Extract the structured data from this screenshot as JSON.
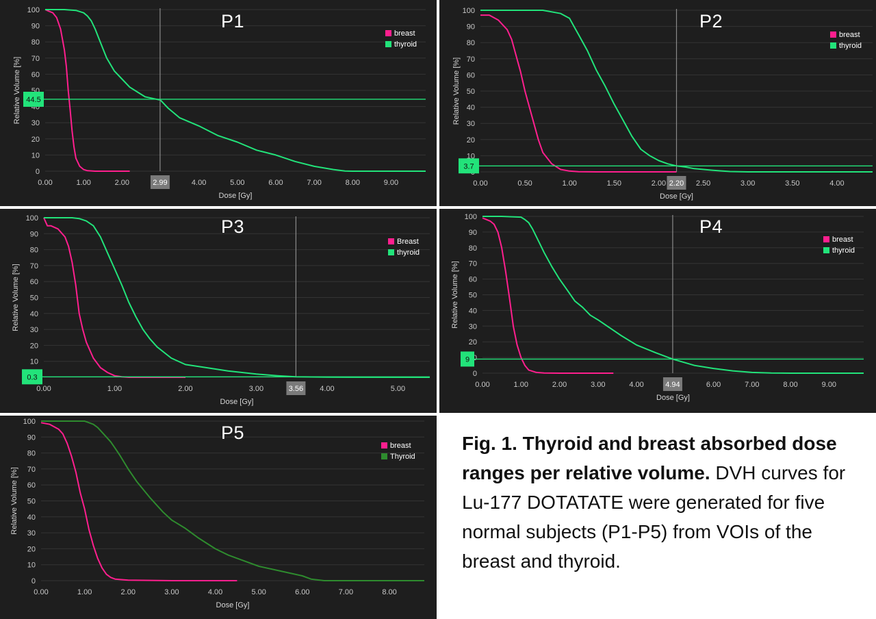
{
  "figure": {
    "caption_bold": "Fig. 1. Thyroid and breast absorbed dose ranges per relative volume.",
    "caption_rest": " DVH curves for Lu-177 DOTATATE were generated for five normal subjects (P1-P5) from VOIs of the breast and thyroid."
  },
  "colors": {
    "breast": "#ff1f8e",
    "thyroid": "#22e37a",
    "thyroid_p5": "#2e8b2e",
    "badge_green": "#22e37a",
    "badge_gray": "#7a7a7a"
  },
  "chart_data": [
    {
      "type": "line",
      "title": "P1",
      "xlabel": "Dose [Gy]",
      "ylabel": "Relative Volume [%]",
      "xlim": [
        0,
        9.9
      ],
      "ylim": [
        0,
        100
      ],
      "xticks": [
        "0.00",
        "1.00",
        "2.00",
        "3.00",
        "4.00",
        "5.00",
        "6.00",
        "7.00",
        "8.00",
        "9.00"
      ],
      "xtick_values": [
        0,
        1,
        2,
        3,
        4,
        5,
        6,
        7,
        8,
        9
      ],
      "yticks": [
        0,
        10,
        20,
        30,
        40,
        50,
        60,
        70,
        80,
        90,
        100
      ],
      "legend": "top-right",
      "cursor": {
        "x": 2.99,
        "x_label": "2.99",
        "y": 44.5,
        "y_label": "44.5"
      },
      "series": [
        {
          "name": "breast",
          "x": [
            0,
            0.1,
            0.2,
            0.3,
            0.4,
            0.5,
            0.55,
            0.6,
            0.65,
            0.7,
            0.75,
            0.8,
            0.9,
            1.0,
            1.1,
            1.3,
            1.6,
            2.2
          ],
          "y": [
            100,
            99,
            98,
            95,
            88,
            75,
            65,
            50,
            38,
            25,
            15,
            8,
            3,
            1,
            0.3,
            0,
            0,
            0
          ]
        },
        {
          "name": "thyroid",
          "x": [
            0,
            0.5,
            0.8,
            1.0,
            1.1,
            1.2,
            1.3,
            1.4,
            1.5,
            1.6,
            1.8,
            2.0,
            2.2,
            2.4,
            2.6,
            2.8,
            3.0,
            3.2,
            3.5,
            4.0,
            4.5,
            5.0,
            5.5,
            6.0,
            6.5,
            7.0,
            7.5,
            7.8,
            8.0,
            9.9
          ],
          "y": [
            100,
            100,
            99.5,
            98,
            96,
            93,
            88,
            82,
            76,
            70,
            62,
            57,
            52,
            49,
            46,
            45,
            44,
            39,
            33,
            28,
            22,
            18,
            13,
            10,
            6,
            3,
            1,
            0.1,
            0,
            0
          ]
        }
      ]
    },
    {
      "type": "line",
      "title": "P2",
      "xlabel": "Dose [Gy]",
      "ylabel": "Relative Volume [%]",
      "xlim": [
        0,
        4.4
      ],
      "ylim": [
        0,
        100
      ],
      "xticks": [
        "0.00",
        "0.50",
        "1.00",
        "1.50",
        "2.00",
        "2.50",
        "3.00",
        "3.50",
        "4.00"
      ],
      "xtick_values": [
        0,
        0.5,
        1.0,
        1.5,
        2.0,
        2.5,
        3.0,
        3.5,
        4.0
      ],
      "yticks": [
        0,
        10,
        20,
        30,
        40,
        50,
        60,
        70,
        80,
        90,
        100
      ],
      "legend": "top-right",
      "cursor": {
        "x": 2.2,
        "x_label": "2.20",
        "y": 3.7,
        "y_label": "3.7"
      },
      "series": [
        {
          "name": "breast",
          "x": [
            0,
            0.1,
            0.2,
            0.3,
            0.35,
            0.4,
            0.45,
            0.5,
            0.55,
            0.6,
            0.65,
            0.7,
            0.8,
            0.9,
            1.0,
            1.1,
            1.3,
            2.2
          ],
          "y": [
            97,
            97,
            94,
            88,
            82,
            72,
            62,
            50,
            40,
            30,
            20,
            12,
            5,
            1.5,
            0.5,
            0.1,
            0,
            0
          ]
        },
        {
          "name": "thyroid",
          "x": [
            0,
            0.5,
            0.7,
            0.9,
            1.0,
            1.05,
            1.1,
            1.2,
            1.3,
            1.4,
            1.5,
            1.6,
            1.7,
            1.8,
            1.9,
            2.0,
            2.1,
            2.2,
            2.3,
            2.4,
            2.6,
            2.8,
            3.0,
            4.4
          ],
          "y": [
            100,
            100,
            100,
            98,
            95,
            90,
            85,
            75,
            63,
            53,
            42,
            32,
            22,
            14,
            10,
            7,
            5,
            3.7,
            3,
            2,
            1,
            0.2,
            0,
            0
          ]
        }
      ]
    },
    {
      "type": "line",
      "title": "P3",
      "xlabel": "Dose [Gy]",
      "ylabel": "Relative Volume [%]",
      "xlim": [
        0,
        5.45
      ],
      "ylim": [
        0,
        100
      ],
      "xticks": [
        "0.00",
        "1.00",
        "2.00",
        "3.00",
        "4.00",
        "5.00"
      ],
      "xtick_values": [
        0,
        1,
        2,
        3,
        4,
        5
      ],
      "yticks": [
        0,
        10,
        20,
        30,
        40,
        50,
        60,
        70,
        80,
        90,
        100
      ],
      "legend": "top-right",
      "cursor": {
        "x": 3.56,
        "x_label": "3.56",
        "y": 0.3,
        "y_label": "0.3"
      },
      "series": [
        {
          "name": "Breast",
          "x": [
            0,
            0.05,
            0.1,
            0.2,
            0.3,
            0.35,
            0.4,
            0.45,
            0.5,
            0.55,
            0.6,
            0.7,
            0.8,
            0.9,
            1.0,
            1.1,
            1.2,
            2.0
          ],
          "y": [
            100,
            95,
            95,
            93,
            88,
            82,
            72,
            58,
            40,
            30,
            22,
            12,
            6,
            3,
            1,
            0.3,
            0,
            0
          ]
        },
        {
          "name": "thyroid",
          "x": [
            0,
            0.4,
            0.5,
            0.6,
            0.7,
            0.8,
            0.9,
            1.0,
            1.1,
            1.2,
            1.3,
            1.4,
            1.5,
            1.6,
            1.8,
            2.0,
            2.3,
            2.6,
            3.0,
            3.3,
            3.56,
            4.0,
            5.45
          ],
          "y": [
            100,
            100,
            99.5,
            98,
            95,
            88,
            78,
            68,
            58,
            47,
            38,
            30,
            24,
            19,
            12,
            8,
            6,
            4,
            2,
            1,
            0.3,
            0.1,
            0
          ]
        }
      ]
    },
    {
      "type": "line",
      "title": "P4",
      "xlabel": "Dose [Gy]",
      "ylabel": "Relative Volume [%]",
      "xlim": [
        0,
        9.9
      ],
      "ylim": [
        0,
        100
      ],
      "xticks": [
        "0.00",
        "1.00",
        "2.00",
        "3.00",
        "4.00",
        "5.00",
        "6.00",
        "7.00",
        "8.00",
        "9.00"
      ],
      "xtick_values": [
        0,
        1,
        2,
        3,
        4,
        5,
        6,
        7,
        8,
        9
      ],
      "yticks": [
        0,
        10,
        20,
        30,
        40,
        50,
        60,
        70,
        80,
        90,
        100
      ],
      "legend": "top-right",
      "cursor": {
        "x": 4.94,
        "x_label": "4.94",
        "y": 9,
        "y_label": "9"
      },
      "series": [
        {
          "name": "breast",
          "x": [
            0,
            0.1,
            0.2,
            0.3,
            0.4,
            0.5,
            0.6,
            0.7,
            0.8,
            0.9,
            1.0,
            1.1,
            1.2,
            1.4,
            1.6,
            2.0,
            3.0,
            3.4
          ],
          "y": [
            99,
            98,
            97,
            95,
            90,
            80,
            65,
            48,
            30,
            18,
            10,
            5,
            2,
            0.5,
            0.1,
            0,
            0,
            0
          ]
        },
        {
          "name": "thyroid",
          "x": [
            0,
            0.5,
            1.0,
            1.1,
            1.2,
            1.3,
            1.4,
            1.5,
            1.6,
            1.8,
            2.0,
            2.2,
            2.4,
            2.6,
            2.8,
            3.0,
            3.3,
            3.6,
            4.0,
            4.5,
            4.94,
            5.5,
            6.0,
            6.5,
            7.0,
            7.5,
            8.0,
            9.9
          ],
          "y": [
            100,
            100,
            99.5,
            98,
            96,
            92,
            87,
            82,
            77,
            68,
            60,
            53,
            46,
            42,
            37,
            34,
            29,
            24,
            18,
            13,
            9,
            5,
            3,
            1.5,
            0.5,
            0.1,
            0,
            0
          ]
        }
      ]
    },
    {
      "type": "line",
      "title": "P5",
      "xlabel": "Dose [Gy]",
      "ylabel": "Relative Volume [%]",
      "xlim": [
        0,
        8.8
      ],
      "ylim": [
        0,
        100
      ],
      "xticks": [
        "0.00",
        "1.00",
        "2.00",
        "3.00",
        "4.00",
        "5.00",
        "6.00",
        "7.00",
        "8.00"
      ],
      "xtick_values": [
        0,
        1,
        2,
        3,
        4,
        5,
        6,
        7,
        8
      ],
      "yticks": [
        0,
        10,
        20,
        30,
        40,
        50,
        60,
        70,
        80,
        90,
        100
      ],
      "legend": "top-right",
      "series": [
        {
          "name": "breast",
          "x": [
            0,
            0.2,
            0.4,
            0.5,
            0.6,
            0.7,
            0.8,
            0.9,
            1.0,
            1.1,
            1.2,
            1.3,
            1.4,
            1.5,
            1.6,
            1.7,
            2.0,
            3.0,
            4.5
          ],
          "y": [
            99,
            98,
            95,
            92,
            86,
            78,
            68,
            55,
            45,
            32,
            22,
            14,
            8,
            4,
            2,
            1,
            0.3,
            0,
            0
          ]
        },
        {
          "name": "Thyroid",
          "x": [
            0,
            0.5,
            0.9,
            1.0,
            1.1,
            1.2,
            1.3,
            1.4,
            1.5,
            1.6,
            1.7,
            1.8,
            2.0,
            2.2,
            2.5,
            2.8,
            3.0,
            3.3,
            3.6,
            4.0,
            4.3,
            4.6,
            5.0,
            5.5,
            6.0,
            6.2,
            6.5,
            8.8
          ],
          "y": [
            100,
            100,
            100,
            100,
            99,
            98,
            96,
            93,
            90,
            87,
            83,
            79,
            70,
            62,
            52,
            43,
            38,
            33,
            27,
            20,
            16,
            13,
            9,
            6,
            3,
            1,
            0,
            0
          ]
        }
      ]
    }
  ]
}
